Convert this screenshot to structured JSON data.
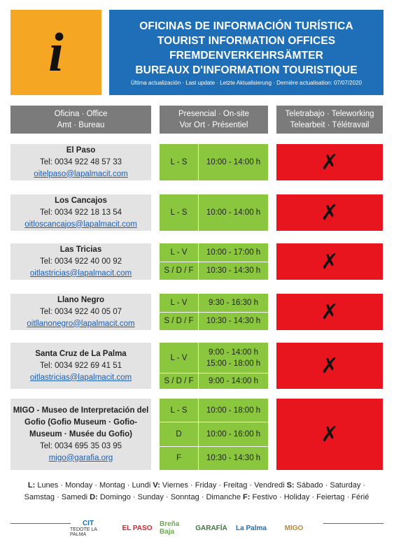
{
  "header": {
    "lines": [
      "OFICINAS DE INFORMACIÓN TURÍSTICA",
      "TOURIST INFORMATION OFFICES",
      "FREMDENVERKEHRSÄMTER",
      "BUREAUX D'INFORMATION TOURISTIQUE"
    ],
    "update": "Última actualización · Last update · Letzte Aktualisierung · Dernière actualisation: 07/07/2020"
  },
  "info_icon": "i",
  "columns": {
    "office": [
      "Oficina · Office",
      "Amt · Bureau"
    ],
    "onsite": [
      "Presencial · On-site",
      "Vor Ort · Présentiel"
    ],
    "remote": [
      "Teletrabajo · Teleworking",
      "Telearbeit · Télétravail"
    ]
  },
  "closed_mark": "✗",
  "offices": [
    {
      "name": "El Paso",
      "tel": "Tel: 0034 922 48 57 33",
      "email": "oitelpaso@lapalmacit.com",
      "schedule": [
        {
          "days": "L - S",
          "hours": [
            "10:00 - 14:00 h"
          ]
        }
      ]
    },
    {
      "name": "Los Cancajos",
      "tel": "Tel: 0034 922 18 13 54",
      "email": "oitloscancajos@lapalmacit.com",
      "schedule": [
        {
          "days": "L - S",
          "hours": [
            "10:00 - 14:00 h"
          ]
        }
      ]
    },
    {
      "name": "Las Tricias",
      "tel": "Tel: 0034 922 40 00 92",
      "email": "oitlastricias@lapalmacit.com",
      "schedule": [
        {
          "days": "L - V",
          "hours": [
            "10:00 - 17:00 h"
          ]
        },
        {
          "days": "S / D / F",
          "hours": [
            "10:30 - 14:30 h"
          ]
        }
      ]
    },
    {
      "name": "Llano Negro",
      "tel": "Tel: 0034 922 40 05 07",
      "email": "oitllanonegro@lapalmacit.com",
      "schedule": [
        {
          "days": "L - V",
          "hours": [
            "9:30 - 16:30 h"
          ]
        },
        {
          "days": "S / D / F",
          "hours": [
            "10:30 - 14:30 h"
          ]
        }
      ]
    },
    {
      "name": "Santa Cruz de La Palma",
      "tel": "Tel: 0034 922 69 41 51",
      "email": "oitlastricias@lapalmacit.com",
      "schedule": [
        {
          "days": "L - V",
          "hours": [
            "9:00 - 14:00 h",
            "15:00 - 18:00 h"
          ]
        },
        {
          "days": "S / D / F",
          "hours": [
            "9:00 - 14:00 h"
          ]
        }
      ]
    },
    {
      "name": "MIGO - Museo de Interpretación del Gofio (Gofio Museum · Gofio-Museum · Musée du Gofio)",
      "tel": "Tel: 0034 695 35 03 95",
      "email": "migo@garafia.org",
      "schedule": [
        {
          "days": "L - S",
          "hours": [
            "10:00 - 18:00 h"
          ]
        },
        {
          "days": "D",
          "hours": [
            "10:00 - 16:00 h"
          ]
        },
        {
          "days": "F",
          "hours": [
            "10:30 - 14:30 h"
          ]
        }
      ]
    }
  ],
  "legend": {
    "line1": [
      {
        "key": "L:",
        "text": " Lunes · Monday · Montag · Lundi"
      },
      {
        "key": "V:",
        "text": " Viernes · Friday · Freitag · Vendredi"
      },
      {
        "key": "S:",
        "text": " Sábado · Saturday ·"
      }
    ],
    "line2": [
      {
        "key": "",
        "text": "Samstag · Samedi"
      },
      {
        "key": "D:",
        "text": " Domingo · Sunday · Sonntag · Dimanche"
      },
      {
        "key": "F:",
        "text": " Festivo · Holiday · Feiertag · Férié"
      }
    ]
  },
  "logos": [
    {
      "name": "cit-logo",
      "text": "CIT",
      "sub": "TEDOTE LA PALMA",
      "color": "#1a6fb5"
    },
    {
      "name": "el-paso-logo",
      "text": "EL PASO",
      "sub": "",
      "color": "#d4262c"
    },
    {
      "name": "brena-baja-logo",
      "text": "Breña Baja",
      "sub": "",
      "color": "#6aa84f"
    },
    {
      "name": "garafia-logo",
      "text": "GARAFÍA",
      "sub": "",
      "color": "#3d7a3a"
    },
    {
      "name": "la-palma-logo",
      "text": "La Palma",
      "sub": "",
      "color": "#1f6fb8"
    },
    {
      "name": "migo-logo",
      "text": "MIGO",
      "sub": "",
      "color": "#b5893b"
    }
  ]
}
